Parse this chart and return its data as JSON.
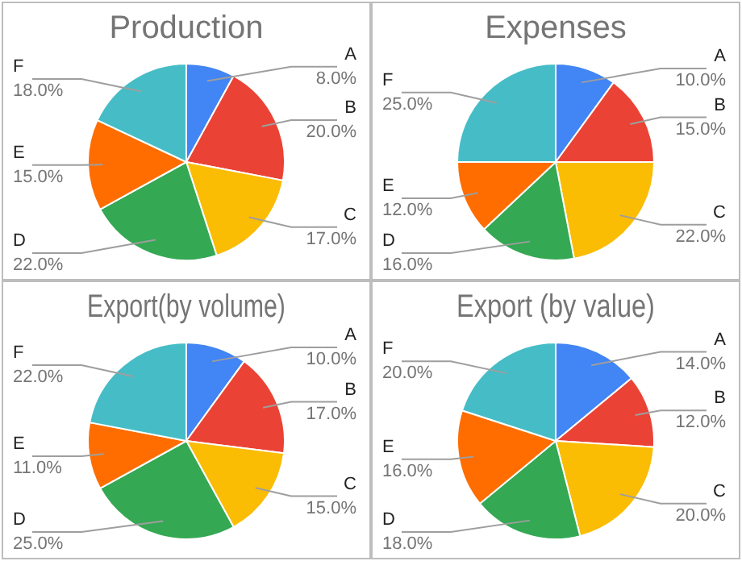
{
  "chart_data": [
    {
      "type": "pie",
      "title": "Production",
      "categories": [
        "A",
        "B",
        "C",
        "D",
        "E",
        "F"
      ],
      "values": [
        8,
        20,
        17,
        22,
        15,
        18
      ],
      "value_labels": [
        "8.0%",
        "20.0%",
        "17.0%",
        "22.0%",
        "15.0%",
        "18.0%"
      ],
      "colors": [
        "#4285f4",
        "#ea4335",
        "#fbbc04",
        "#34a853",
        "#ff6d01",
        "#46bdc6"
      ],
      "legend": false
    },
    {
      "type": "pie",
      "title": "Expenses",
      "categories": [
        "A",
        "B",
        "C",
        "D",
        "E",
        "F"
      ],
      "values": [
        10,
        15,
        22,
        16,
        12,
        25
      ],
      "value_labels": [
        "10.0%",
        "15.0%",
        "22.0%",
        "16.0%",
        "12.0%",
        "25.0%"
      ],
      "colors": [
        "#4285f4",
        "#ea4335",
        "#fbbc04",
        "#34a853",
        "#ff6d01",
        "#46bdc6"
      ],
      "legend": false
    },
    {
      "type": "pie",
      "title": "Export(by volume)",
      "categories": [
        "A",
        "B",
        "C",
        "D",
        "E",
        "F"
      ],
      "values": [
        10,
        17,
        15,
        25,
        11,
        22
      ],
      "value_labels": [
        "10.0%",
        "17.0%",
        "15.0%",
        "25.0%",
        "11.0%",
        "22.0%"
      ],
      "colors": [
        "#4285f4",
        "#ea4335",
        "#fbbc04",
        "#34a853",
        "#ff6d01",
        "#46bdc6"
      ],
      "legend": false
    },
    {
      "type": "pie",
      "title": "Export (by value)",
      "categories": [
        "A",
        "B",
        "C",
        "D",
        "E",
        "F"
      ],
      "values": [
        14,
        12,
        20,
        18,
        16,
        20
      ],
      "value_labels": [
        "14.0%",
        "12.0%",
        "20.0%",
        "18.0%",
        "16.0%",
        "20.0%"
      ],
      "colors": [
        "#4285f4",
        "#ea4335",
        "#fbbc04",
        "#34a853",
        "#ff6d01",
        "#46bdc6"
      ],
      "legend": false
    }
  ]
}
